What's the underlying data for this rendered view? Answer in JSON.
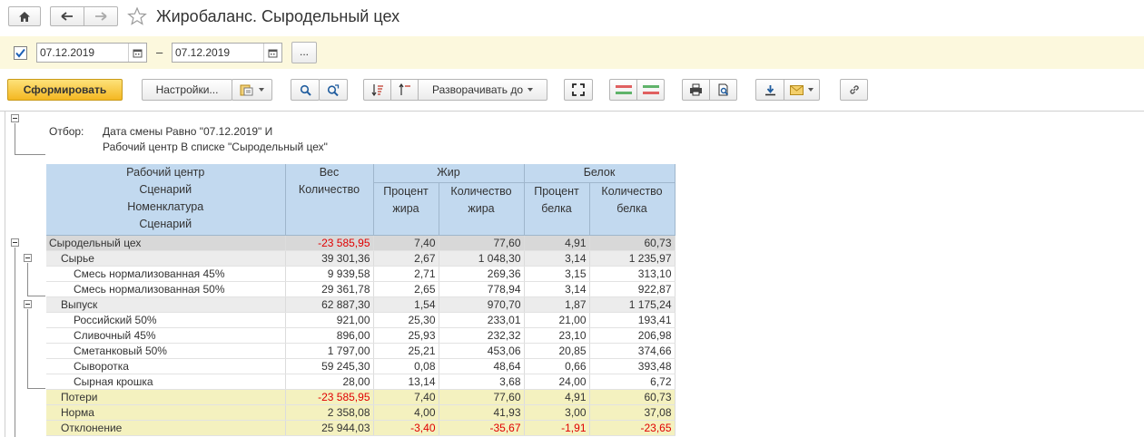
{
  "window": {
    "title": "Жиробаланс. Сыродельный цех",
    "icons": {
      "home": "home-icon",
      "back": "arrow-left-icon",
      "forward": "arrow-right-icon",
      "favorite": "star-icon"
    }
  },
  "filterbar": {
    "enabled": true,
    "date_from": "07.12.2019",
    "separator": "–",
    "date_to": "07.12.2019",
    "more_label": "..."
  },
  "toolbar": {
    "generate_label": "Сформировать",
    "settings_label": "Настройки...",
    "expand_label": "Разворачивать до"
  },
  "report": {
    "filter_label": "Отбор:",
    "filter_lines": [
      "Дата смены Равно \"07.12.2019\" И",
      "Рабочий центр В списке \"Сыродельный цех\""
    ],
    "header": {
      "col0": [
        "Рабочий центр",
        "Сценарий",
        "Номенклатура",
        "Сценарий"
      ],
      "ves": "Вес",
      "ves_qty": "Количество",
      "fat": "Жир",
      "fat_pct": [
        "Процент",
        "жира"
      ],
      "fat_qty": [
        "Количество",
        "жира"
      ],
      "protein": "Белок",
      "protein_pct": [
        "Процент",
        "белка"
      ],
      "protein_qty": [
        "Количество",
        "белка"
      ]
    },
    "rows": [
      {
        "name": "Сыродельный цех",
        "level": 0,
        "ves": "-23 585,95",
        "ves_neg": true,
        "fat_pct": "7,40",
        "fat_qty": "77,60",
        "prot_pct": "4,91",
        "prot_qty": "60,73"
      },
      {
        "name": "Сырье",
        "level": 1,
        "ves": "39 301,36",
        "fat_pct": "2,67",
        "fat_qty": "1 048,30",
        "prot_pct": "3,14",
        "prot_qty": "1 235,97"
      },
      {
        "name": "Смесь нормализованная 45%",
        "level": 2,
        "ves": "9 939,58",
        "fat_pct": "2,71",
        "fat_qty": "269,36",
        "prot_pct": "3,15",
        "prot_qty": "313,10"
      },
      {
        "name": "Смесь нормализованная 50%",
        "level": 2,
        "ves": "29 361,78",
        "fat_pct": "2,65",
        "fat_qty": "778,94",
        "prot_pct": "3,14",
        "prot_qty": "922,87"
      },
      {
        "name": "Выпуск",
        "level": 1,
        "ves": "62 887,30",
        "fat_pct": "1,54",
        "fat_qty": "970,70",
        "prot_pct": "1,87",
        "prot_qty": "1 175,24"
      },
      {
        "name": "Российский 50%",
        "level": 2,
        "ves": "921,00",
        "fat_pct": "25,30",
        "fat_qty": "233,01",
        "prot_pct": "21,00",
        "prot_qty": "193,41"
      },
      {
        "name": "Сливочный 45%",
        "level": 2,
        "ves": "896,00",
        "fat_pct": "25,93",
        "fat_qty": "232,32",
        "prot_pct": "23,10",
        "prot_qty": "206,98"
      },
      {
        "name": "Сметанковый 50%",
        "level": 2,
        "ves": "1 797,00",
        "fat_pct": "25,21",
        "fat_qty": "453,06",
        "prot_pct": "20,85",
        "prot_qty": "374,66"
      },
      {
        "name": "Сыворотка",
        "level": 2,
        "ves": "59 245,30",
        "fat_pct": "0,08",
        "fat_qty": "48,64",
        "prot_pct": "0,66",
        "prot_qty": "393,48"
      },
      {
        "name": "Сырная крошка",
        "level": 2,
        "ves": "28,00",
        "fat_pct": "13,14",
        "fat_qty": "3,68",
        "prot_pct": "24,00",
        "prot_qty": "6,72"
      },
      {
        "name": "Потери",
        "level": "total",
        "ves": "-23 585,95",
        "ves_neg": true,
        "fat_pct": "7,40",
        "fat_qty": "77,60",
        "prot_pct": "4,91",
        "prot_qty": "60,73"
      },
      {
        "name": "Норма",
        "level": "total",
        "ves": "2 358,08",
        "fat_pct": "4,00",
        "fat_qty": "41,93",
        "prot_pct": "3,00",
        "prot_qty": "37,08"
      },
      {
        "name": "Отклонение",
        "level": "total",
        "ves": "25 944,03",
        "fat_pct": "-3,40",
        "fat_neg": true,
        "fat_qty": "-35,67",
        "fatq_neg": true,
        "prot_pct": "-1,91",
        "protp_neg": true,
        "prot_qty": "-23,65",
        "protq_neg": true
      }
    ]
  },
  "colors": {
    "filter_bg": "#fcf8dd",
    "header_bg": "#c2d9ef",
    "group_bg": "#d8d8d8",
    "subgroup_bg": "#ececec",
    "total_bg": "#f4f1bf",
    "negative": "#e00000",
    "primary_button": "#f4b722"
  }
}
